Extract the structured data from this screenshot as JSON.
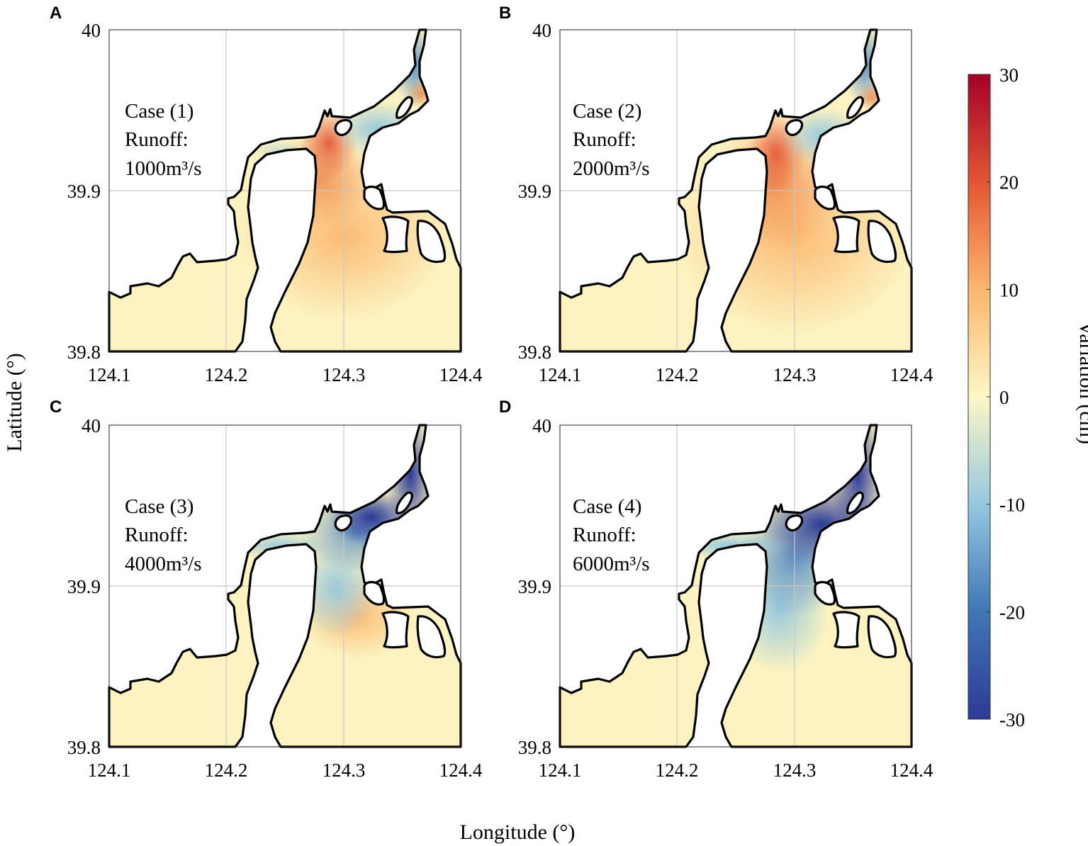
{
  "figure": {
    "x_axis_label": "Longitude (°)",
    "y_axis_label": "Latitude (°)",
    "x_ticks": [
      "124.1",
      "124.2",
      "124.3",
      "124.4"
    ],
    "y_ticks": [
      "39.8",
      "39.9",
      "40"
    ]
  },
  "panels": [
    {
      "letter": "A",
      "case": "Case (1)",
      "runoff_label": "Runoff:",
      "runoff_value": "1000m³/s"
    },
    {
      "letter": "B",
      "case": "Case (2)",
      "runoff_label": "Runoff:",
      "runoff_value": "2000m³/s"
    },
    {
      "letter": "C",
      "case": "Case (3)",
      "runoff_label": "Runoff:",
      "runoff_value": "4000m³/s"
    },
    {
      "letter": "D",
      "case": "Case (4)",
      "runoff_label": "Runoff:",
      "runoff_value": "6000m³/s"
    }
  ],
  "colorbar": {
    "label": "Variation (cm)",
    "ticks": [
      "30",
      "20",
      "10",
      "0",
      "-10",
      "-20",
      "-30"
    ],
    "range": [
      -30,
      30
    ],
    "colors": [
      "#2c3a97",
      "#3f78b6",
      "#93c7e0",
      "#fdf7c4",
      "#fbb56c",
      "#e45734",
      "#a50026"
    ]
  },
  "colors": {
    "zero_fill": "#fcf3c0",
    "coastline": "#000000",
    "grid": "#c8c8c8"
  }
}
